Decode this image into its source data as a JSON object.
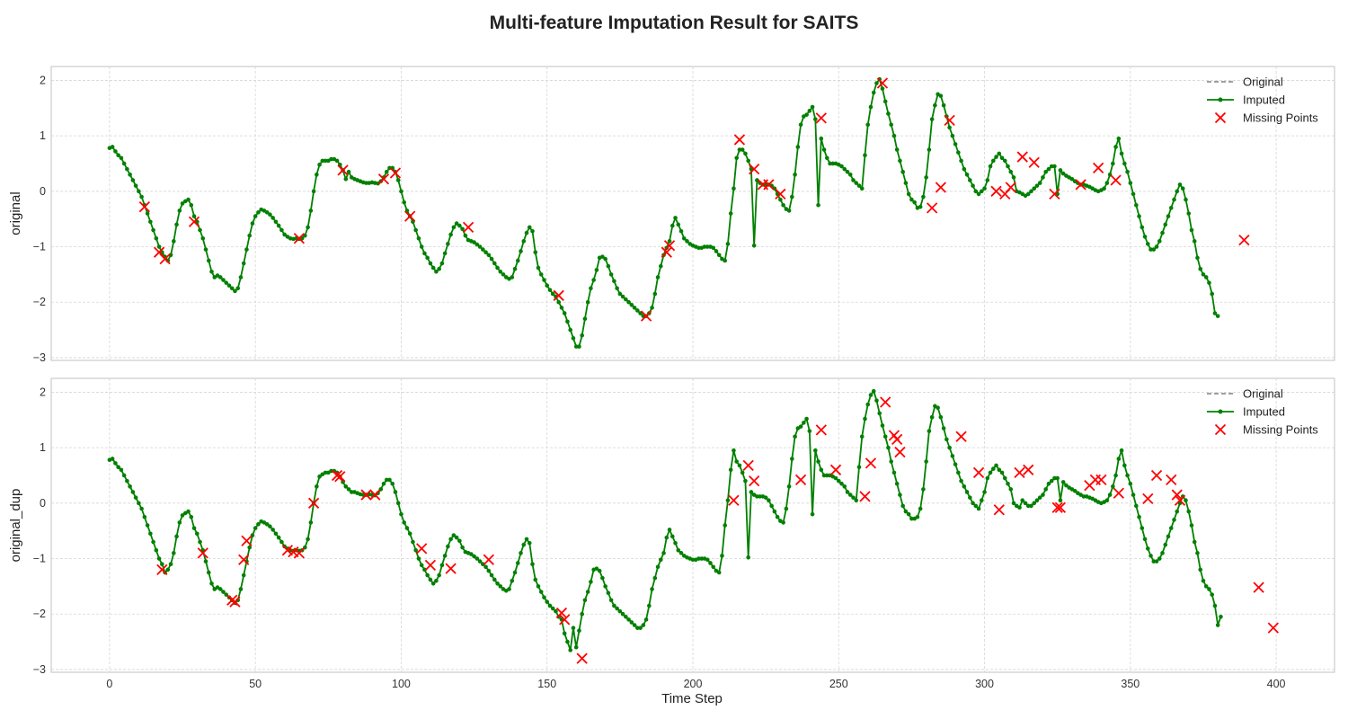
{
  "chart_data": {
    "type": "line",
    "title": "Multi-feature Imputation Result for SAITS",
    "xlabel": "Time Step",
    "xlim": [
      -20,
      420
    ],
    "x_ticks": [
      0,
      50,
      100,
      150,
      200,
      250,
      300,
      350,
      400
    ],
    "grid": true,
    "legend_position": "top-right",
    "colors": {
      "original": "#808080",
      "imputed": "#008000",
      "missing": "#ff0000"
    },
    "subplots": [
      {
        "ylabel": "original",
        "ylim": [
          -3.05,
          2.25
        ],
        "y_ticks": [
          -3,
          -2,
          -1,
          0,
          1,
          2
        ],
        "legend": [
          "Original",
          "Imputed",
          "Missing Points"
        ],
        "series_x_start": 0,
        "series_x_step": 1,
        "imputed_values": [
          0.78,
          0.8,
          0.72,
          0.65,
          0.6,
          0.5,
          0.4,
          0.3,
          0.2,
          0.1,
          0.0,
          -0.1,
          -0.25,
          -0.4,
          -0.55,
          -0.7,
          -0.85,
          -1.0,
          -1.1,
          -1.18,
          -1.25,
          -1.15,
          -0.9,
          -0.6,
          -0.35,
          -0.22,
          -0.18,
          -0.15,
          -0.25,
          -0.45,
          -0.55,
          -0.7,
          -0.85,
          -1.05,
          -1.25,
          -1.45,
          -1.55,
          -1.52,
          -1.55,
          -1.6,
          -1.65,
          -1.7,
          -1.75,
          -1.8,
          -1.75,
          -1.55,
          -1.3,
          -1.05,
          -0.8,
          -0.58,
          -0.45,
          -0.38,
          -0.33,
          -0.35,
          -0.38,
          -0.42,
          -0.48,
          -0.55,
          -0.62,
          -0.7,
          -0.78,
          -0.82,
          -0.85,
          -0.86,
          -0.85,
          -0.86,
          -0.85,
          -0.8,
          -0.65,
          -0.35,
          0.0,
          0.3,
          0.48,
          0.55,
          0.55,
          0.55,
          0.58,
          0.58,
          0.55,
          0.48,
          0.38,
          0.22,
          0.35,
          0.25,
          0.22,
          0.2,
          0.18,
          0.16,
          0.15,
          0.15,
          0.16,
          0.15,
          0.14,
          0.18,
          0.25,
          0.35,
          0.42,
          0.42,
          0.35,
          0.2,
          0.0,
          -0.2,
          -0.35,
          -0.45,
          -0.55,
          -0.7,
          -0.85,
          -1.0,
          -1.12,
          -1.2,
          -1.3,
          -1.38,
          -1.45,
          -1.4,
          -1.3,
          -1.12,
          -0.95,
          -0.78,
          -0.65,
          -0.58,
          -0.62,
          -0.68,
          -0.8,
          -0.88,
          -0.9,
          -0.92,
          -0.96,
          -1.0,
          -1.05,
          -1.1,
          -1.15,
          -1.22,
          -1.3,
          -1.38,
          -1.45,
          -1.5,
          -1.55,
          -1.58,
          -1.55,
          -1.4,
          -1.25,
          -1.08,
          -0.9,
          -0.75,
          -0.65,
          -0.72,
          -1.1,
          -1.38,
          -1.5,
          -1.6,
          -1.7,
          -1.78,
          -1.85,
          -1.9,
          -2.0,
          -2.1,
          -2.2,
          -2.35,
          -2.5,
          -2.65,
          -2.8,
          -2.8,
          -2.6,
          -2.3,
          -2.0,
          -1.75,
          -1.6,
          -1.42,
          -1.2,
          -1.18,
          -1.22,
          -1.35,
          -1.5,
          -1.62,
          -1.75,
          -1.85,
          -1.9,
          -1.95,
          -2.0,
          -2.05,
          -2.1,
          -2.15,
          -2.2,
          -2.25,
          -2.25,
          -2.2,
          -2.1,
          -1.85,
          -1.55,
          -1.35,
          -1.15,
          -1.02,
          -0.9,
          -0.62,
          -0.48,
          -0.6,
          -0.72,
          -0.85,
          -0.9,
          -0.95,
          -0.98,
          -1.0,
          -1.02,
          -1.02,
          -1.0,
          -1.0,
          -1.0,
          -1.02,
          -1.08,
          -1.15,
          -1.22,
          -1.25,
          -0.95,
          -0.4,
          0.05,
          0.6,
          0.75,
          0.75,
          0.68,
          0.55,
          0.4,
          -0.98,
          0.2,
          0.15,
          0.12,
          0.12,
          0.12,
          0.1,
          0.05,
          -0.05,
          -0.15,
          -0.25,
          -0.32,
          -0.35,
          -0.1,
          0.3,
          0.8,
          1.2,
          1.35,
          1.38,
          1.45,
          1.52,
          1.3,
          -0.25,
          0.95,
          0.75,
          0.6,
          0.5,
          0.5,
          0.5,
          0.48,
          0.45,
          0.4,
          0.35,
          0.3,
          0.2,
          0.15,
          0.1,
          0.05,
          0.65,
          1.2,
          1.52,
          1.78,
          1.95,
          2.02,
          1.85,
          1.62,
          1.4,
          1.2,
          1.0,
          0.75,
          0.55,
          0.35,
          0.15,
          -0.05,
          -0.15,
          -0.2,
          -0.3,
          -0.28,
          -0.1,
          0.25,
          0.75,
          1.3,
          1.55,
          1.75,
          1.72,
          1.55,
          1.35,
          1.15,
          1.0,
          0.85,
          0.7,
          0.55,
          0.4,
          0.3,
          0.2,
          0.1,
          0.0,
          -0.05,
          0.0,
          0.05,
          0.2,
          0.45,
          0.55,
          0.62,
          0.68,
          0.6,
          0.55,
          0.45,
          0.35,
          0.25,
          0.0,
          -0.02,
          -0.05,
          -0.08,
          -0.05,
          0.0,
          0.05,
          0.1,
          0.15,
          0.25,
          0.35,
          0.4,
          0.45,
          0.45,
          -0.05,
          0.38,
          0.32,
          0.28,
          0.25,
          0.22,
          0.18,
          0.15,
          0.12,
          0.12,
          0.1,
          0.08,
          0.05,
          0.02,
          0.0,
          0.02,
          0.05,
          0.15,
          0.3,
          0.5,
          0.8,
          0.95,
          0.68,
          0.5,
          0.35,
          0.15,
          -0.05,
          -0.25,
          -0.45,
          -0.65,
          -0.82,
          -0.95,
          -1.05,
          -1.05,
          -1.0,
          -0.9,
          -0.75,
          -0.6,
          -0.45,
          -0.3,
          -0.15,
          0.0,
          0.12,
          0.05,
          -0.15,
          -0.4,
          -0.7,
          -0.9,
          -1.2,
          -1.4,
          -1.5,
          -1.55,
          -1.65,
          -1.85,
          -2.2,
          -2.25
        ],
        "missing_points": [
          {
            "x": 12,
            "y": -0.28
          },
          {
            "x": 17,
            "y": -1.1
          },
          {
            "x": 19,
            "y": -1.22
          },
          {
            "x": 29,
            "y": -0.55
          },
          {
            "x": 65,
            "y": -0.85
          },
          {
            "x": 80,
            "y": 0.38
          },
          {
            "x": 94,
            "y": 0.22
          },
          {
            "x": 98,
            "y": 0.33
          },
          {
            "x": 103,
            "y": -0.45
          },
          {
            "x": 123,
            "y": -0.65
          },
          {
            "x": 154,
            "y": -1.88
          },
          {
            "x": 184,
            "y": -2.25
          },
          {
            "x": 191,
            "y": -1.1
          },
          {
            "x": 192,
            "y": -0.98
          },
          {
            "x": 216,
            "y": 0.93
          },
          {
            "x": 221,
            "y": 0.4
          },
          {
            "x": 224,
            "y": 0.12
          },
          {
            "x": 226,
            "y": 0.12
          },
          {
            "x": 230,
            "y": -0.05
          },
          {
            "x": 244,
            "y": 1.32
          },
          {
            "x": 265,
            "y": 1.95
          },
          {
            "x": 282,
            "y": -0.3
          },
          {
            "x": 285,
            "y": 0.07
          },
          {
            "x": 288,
            "y": 1.28
          },
          {
            "x": 304,
            "y": 0.0
          },
          {
            "x": 307,
            "y": -0.05
          },
          {
            "x": 309,
            "y": 0.07
          },
          {
            "x": 313,
            "y": 0.62
          },
          {
            "x": 317,
            "y": 0.52
          },
          {
            "x": 324,
            "y": -0.05
          },
          {
            "x": 333,
            "y": 0.12
          },
          {
            "x": 339,
            "y": 0.42
          },
          {
            "x": 345,
            "y": 0.2
          },
          {
            "x": 389,
            "y": -0.88
          }
        ]
      },
      {
        "ylabel": "original_dup",
        "ylim": [
          -3.05,
          2.25
        ],
        "y_ticks": [
          -3,
          -2,
          -1,
          0,
          1,
          2
        ],
        "legend": [
          "Original",
          "Imputed",
          "Missing Points"
        ],
        "series_x_start": 0,
        "series_x_step": 1,
        "imputed_values": [
          0.78,
          0.8,
          0.72,
          0.65,
          0.6,
          0.5,
          0.4,
          0.3,
          0.2,
          0.1,
          0.0,
          -0.1,
          -0.25,
          -0.4,
          -0.55,
          -0.7,
          -0.85,
          -1.0,
          -1.1,
          -1.25,
          -1.2,
          -1.1,
          -0.9,
          -0.6,
          -0.35,
          -0.22,
          -0.18,
          -0.15,
          -0.25,
          -0.45,
          -0.55,
          -0.7,
          -0.85,
          -1.05,
          -1.25,
          -1.45,
          -1.55,
          -1.52,
          -1.55,
          -1.6,
          -1.65,
          -1.7,
          -1.75,
          -1.8,
          -1.75,
          -1.55,
          -1.3,
          -1.05,
          -0.8,
          -0.58,
          -0.45,
          -0.38,
          -0.33,
          -0.35,
          -0.38,
          -0.42,
          -0.48,
          -0.55,
          -0.62,
          -0.7,
          -0.78,
          -0.82,
          -0.85,
          -0.86,
          -0.85,
          -0.86,
          -0.85,
          -0.8,
          -0.65,
          -0.35,
          0.0,
          0.3,
          0.48,
          0.52,
          0.55,
          0.55,
          0.58,
          0.58,
          0.55,
          0.48,
          0.38,
          0.3,
          0.25,
          0.2,
          0.2,
          0.18,
          0.16,
          0.15,
          0.15,
          0.16,
          0.15,
          0.14,
          0.18,
          0.25,
          0.35,
          0.42,
          0.42,
          0.35,
          0.2,
          0.0,
          -0.2,
          -0.35,
          -0.45,
          -0.55,
          -0.7,
          -0.85,
          -1.0,
          -1.12,
          -1.2,
          -1.3,
          -1.38,
          -1.45,
          -1.4,
          -1.3,
          -1.12,
          -0.95,
          -0.78,
          -0.65,
          -0.58,
          -0.62,
          -0.68,
          -0.8,
          -0.88,
          -0.9,
          -0.92,
          -0.96,
          -1.0,
          -1.05,
          -1.1,
          -1.15,
          -1.22,
          -1.3,
          -1.38,
          -1.45,
          -1.5,
          -1.55,
          -1.58,
          -1.55,
          -1.4,
          -1.25,
          -1.08,
          -0.9,
          -0.75,
          -0.65,
          -0.72,
          -1.1,
          -1.38,
          -1.5,
          -1.6,
          -1.7,
          -1.78,
          -1.85,
          -1.9,
          -1.95,
          -2.05,
          -2.1,
          -2.35,
          -2.5,
          -2.65,
          -2.25,
          -2.6,
          -2.3,
          -2.0,
          -1.75,
          -1.6,
          -1.42,
          -1.2,
          -1.18,
          -1.22,
          -1.35,
          -1.5,
          -1.62,
          -1.75,
          -1.85,
          -1.9,
          -1.95,
          -2.0,
          -2.05,
          -2.1,
          -2.15,
          -2.2,
          -2.25,
          -2.25,
          -2.2,
          -2.1,
          -1.85,
          -1.55,
          -1.35,
          -1.15,
          -1.02,
          -0.9,
          -0.62,
          -0.48,
          -0.6,
          -0.72,
          -0.85,
          -0.9,
          -0.95,
          -0.98,
          -1.0,
          -1.02,
          -1.02,
          -1.0,
          -1.0,
          -1.0,
          -1.02,
          -1.08,
          -1.15,
          -1.22,
          -1.25,
          -0.95,
          -0.4,
          0.05,
          0.6,
          0.95,
          0.75,
          0.68,
          0.55,
          0.4,
          -0.98,
          0.2,
          0.15,
          0.12,
          0.12,
          0.12,
          0.1,
          0.05,
          -0.05,
          -0.15,
          -0.25,
          -0.32,
          -0.35,
          -0.1,
          0.3,
          0.8,
          1.2,
          1.35,
          1.38,
          1.45,
          1.52,
          1.3,
          -0.2,
          0.95,
          0.75,
          0.6,
          0.5,
          0.5,
          0.5,
          0.48,
          0.45,
          0.4,
          0.35,
          0.3,
          0.2,
          0.15,
          0.1,
          0.05,
          0.65,
          1.2,
          1.52,
          1.78,
          1.95,
          2.02,
          1.85,
          1.62,
          1.4,
          1.2,
          1.0,
          0.75,
          0.55,
          0.35,
          0.15,
          -0.05,
          -0.15,
          -0.2,
          -0.28,
          -0.28,
          -0.25,
          -0.1,
          0.25,
          0.75,
          1.3,
          1.55,
          1.75,
          1.72,
          1.55,
          1.35,
          1.15,
          1.0,
          0.85,
          0.7,
          0.55,
          0.4,
          0.3,
          0.2,
          0.1,
          0.0,
          -0.05,
          -0.1,
          0.05,
          0.2,
          0.45,
          0.55,
          0.62,
          0.68,
          0.6,
          0.55,
          0.45,
          0.35,
          0.25,
          0.0,
          -0.05,
          -0.08,
          0.05,
          0.0,
          -0.05,
          -0.05,
          0.0,
          0.05,
          0.1,
          0.15,
          0.25,
          0.35,
          0.4,
          0.45,
          0.45,
          0.05,
          0.38,
          0.32,
          0.28,
          0.25,
          0.22,
          0.18,
          0.15,
          0.12,
          0.12,
          0.1,
          0.08,
          0.05,
          0.02,
          0.0,
          0.02,
          0.05,
          0.15,
          0.3,
          0.5,
          0.8,
          0.95,
          0.68,
          0.5,
          0.35,
          0.15,
          -0.05,
          -0.25,
          -0.45,
          -0.65,
          -0.82,
          -0.95,
          -1.05,
          -1.05,
          -1.0,
          -0.9,
          -0.75,
          -0.6,
          -0.45,
          -0.3,
          -0.15,
          0.0,
          0.12,
          0.05,
          -0.15,
          -0.4,
          -0.7,
          -0.9,
          -1.2,
          -1.4,
          -1.5,
          -1.55,
          -1.65,
          -1.85,
          -2.2,
          -2.05
        ],
        "missing_points": [
          {
            "x": 18,
            "y": -1.2
          },
          {
            "x": 32,
            "y": -0.9
          },
          {
            "x": 42,
            "y": -1.75
          },
          {
            "x": 43,
            "y": -1.78
          },
          {
            "x": 46,
            "y": -1.02
          },
          {
            "x": 47,
            "y": -0.68
          },
          {
            "x": 61,
            "y": -0.85
          },
          {
            "x": 63,
            "y": -0.88
          },
          {
            "x": 65,
            "y": -0.9
          },
          {
            "x": 70,
            "y": 0.0
          },
          {
            "x": 78,
            "y": 0.5
          },
          {
            "x": 79,
            "y": 0.48
          },
          {
            "x": 88,
            "y": 0.15
          },
          {
            "x": 91,
            "y": 0.15
          },
          {
            "x": 107,
            "y": -0.82
          },
          {
            "x": 110,
            "y": -1.12
          },
          {
            "x": 117,
            "y": -1.18
          },
          {
            "x": 130,
            "y": -1.02
          },
          {
            "x": 155,
            "y": -1.98
          },
          {
            "x": 156,
            "y": -2.1
          },
          {
            "x": 162,
            "y": -2.8
          },
          {
            "x": 214,
            "y": 0.05
          },
          {
            "x": 219,
            "y": 0.68
          },
          {
            "x": 221,
            "y": 0.4
          },
          {
            "x": 237,
            "y": 0.42
          },
          {
            "x": 244,
            "y": 1.32
          },
          {
            "x": 249,
            "y": 0.6
          },
          {
            "x": 259,
            "y": 0.12
          },
          {
            "x": 261,
            "y": 0.72
          },
          {
            "x": 266,
            "y": 1.82
          },
          {
            "x": 269,
            "y": 1.22
          },
          {
            "x": 270,
            "y": 1.15
          },
          {
            "x": 271,
            "y": 0.92
          },
          {
            "x": 292,
            "y": 1.2
          },
          {
            "x": 298,
            "y": 0.55
          },
          {
            "x": 305,
            "y": -0.12
          },
          {
            "x": 312,
            "y": 0.55
          },
          {
            "x": 315,
            "y": 0.6
          },
          {
            "x": 325,
            "y": -0.08
          },
          {
            "x": 326,
            "y": -0.08
          },
          {
            "x": 336,
            "y": 0.32
          },
          {
            "x": 338,
            "y": 0.42
          },
          {
            "x": 340,
            "y": 0.42
          },
          {
            "x": 346,
            "y": 0.18
          },
          {
            "x": 356,
            "y": 0.08
          },
          {
            "x": 359,
            "y": 0.5
          },
          {
            "x": 364,
            "y": 0.42
          },
          {
            "x": 366,
            "y": 0.15
          },
          {
            "x": 367,
            "y": 0.05
          },
          {
            "x": 394,
            "y": -1.52
          },
          {
            "x": 399,
            "y": -2.25
          }
        ]
      }
    ]
  }
}
